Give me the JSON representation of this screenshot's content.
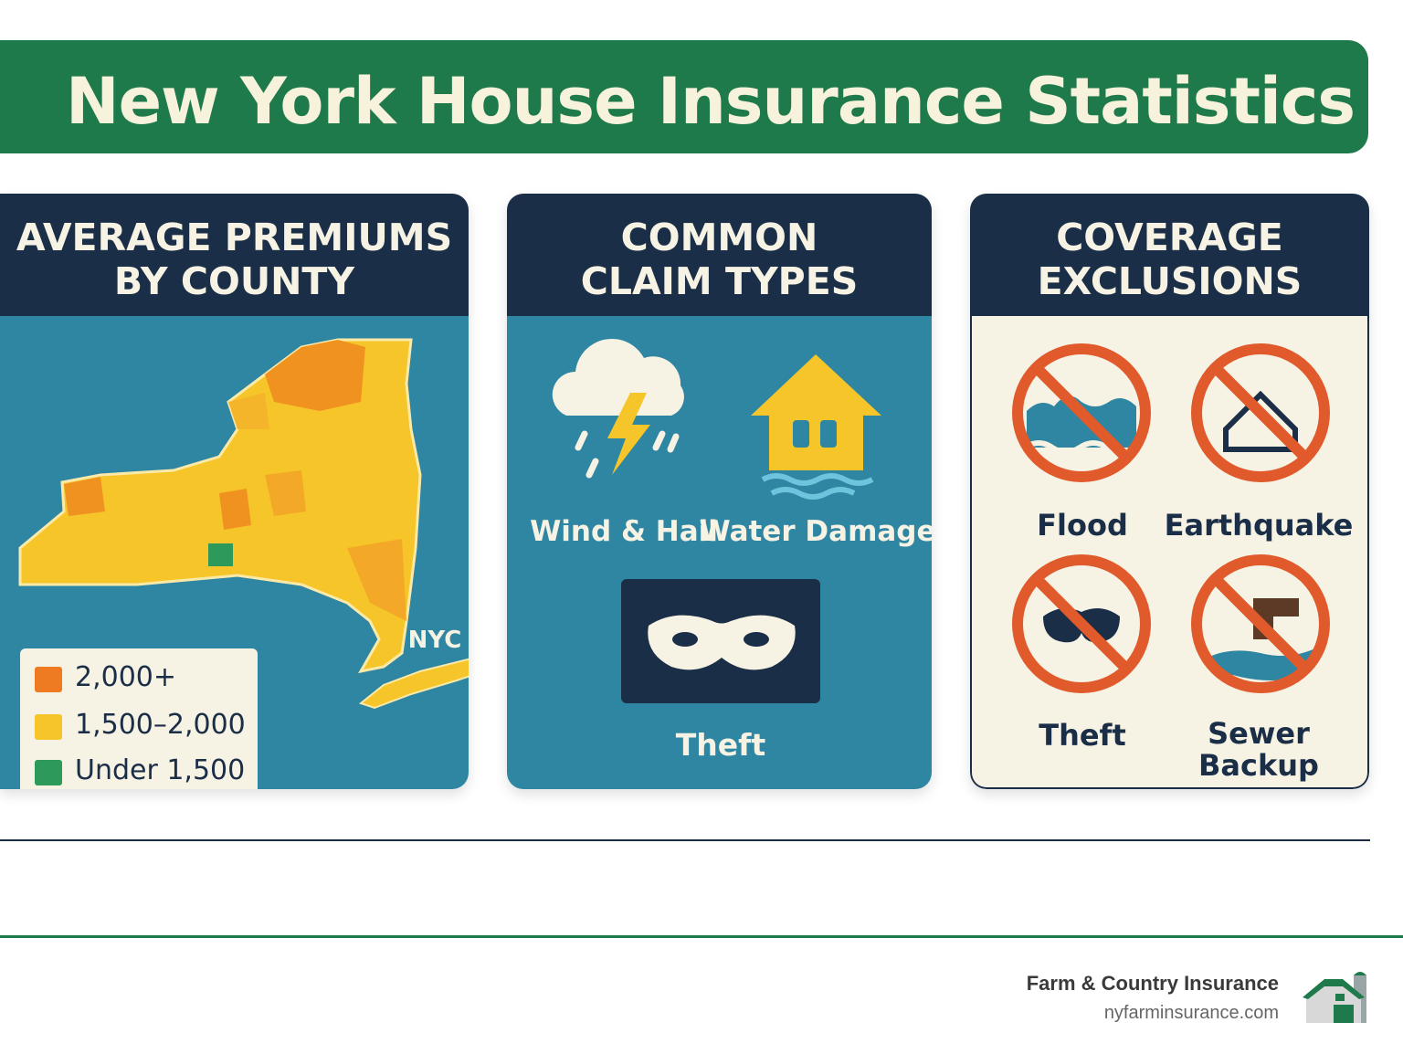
{
  "header": {
    "title": "New York House Insurance Statistics"
  },
  "panels": [
    {
      "heading": [
        "AVERAGE PREMIUMS",
        "BY COUNTY"
      ],
      "map_label": "NYC",
      "legend": [
        "2,000+",
        "1,500–2,000",
        "Under 1,500"
      ]
    },
    {
      "heading": [
        "COMMON",
        "CLAIM TYPES"
      ],
      "items": [
        "Wind & Hail",
        "Water Damage",
        "Theft"
      ]
    },
    {
      "heading": [
        "COVERAGE",
        "EXCLUSIONS"
      ],
      "items": [
        [
          "Flood"
        ],
        [
          "Earthquake"
        ],
        [
          "Theft"
        ],
        [
          "Sewer",
          "Backup"
        ]
      ]
    }
  ],
  "footer": {
    "company": "Farm & Country Insurance",
    "website": "nyfarminsurance.com"
  }
}
